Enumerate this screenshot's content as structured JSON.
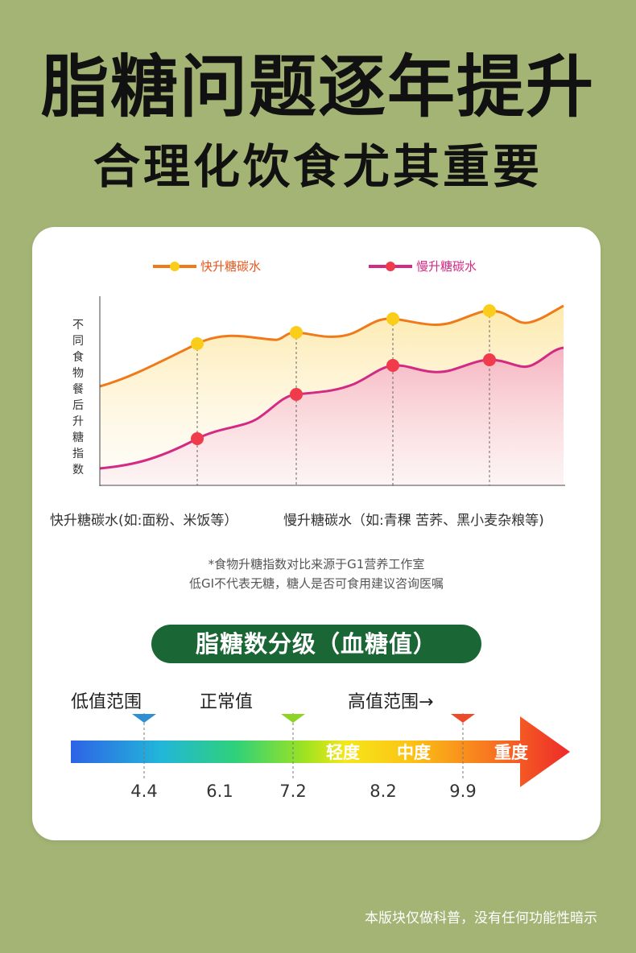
{
  "headline": "脂糖问题逐年提升",
  "subhead": "合理化饮食尤其重要",
  "chart_data": {
    "type": "area",
    "ylabel": "不同食物餐后升糖指数",
    "series": [
      {
        "name": "快升糖碳水",
        "color": "#f07a1a",
        "marker": "#fbcd1b"
      },
      {
        "name": "慢升糖碳水",
        "color": "#d32a84",
        "marker": "#ef3b4c"
      }
    ],
    "categories": [
      "快升糖碳水(如:面粉、米饭等）",
      "慢升糖碳水（如:青稞 苦荞、黑小麦杂粮等)"
    ],
    "grid": false
  },
  "notes": {
    "line1": "*食物升糖指数对比来源于G1营养工作室",
    "line2": "低GI不代表无糖，糖人是否可食用建议咨询医嘱"
  },
  "scale": {
    "title": "脂糖数分级（血糖值）",
    "range_low": "低值范围",
    "range_normal": "正常值",
    "range_high": "高值范围→",
    "levels": [
      "轻度",
      "中度",
      "重度"
    ],
    "ticks": [
      "4.4",
      "6.1",
      "7.2",
      "8.2",
      "9.9"
    ],
    "marker_colors": [
      "#2f8fd3",
      "#8fd327",
      "#ee4a2a"
    ]
  },
  "disclaimer": "本版块仅做科普，没有任何功能性暗示"
}
